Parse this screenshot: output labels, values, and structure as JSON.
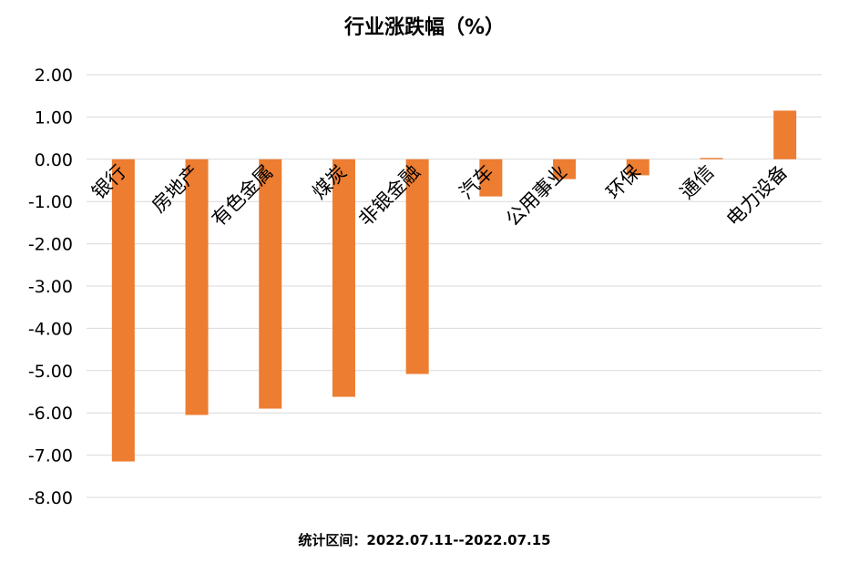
{
  "chart_data": {
    "type": "bar",
    "title": "行业涨跌幅（%）",
    "footnote": "统计区间：2022.07.11--2022.07.15",
    "xlabel": "",
    "ylabel": "",
    "ylim": [
      -8,
      2
    ],
    "yticks": [
      "2.00",
      "1.00",
      "0.00",
      "-1.00",
      "-2.00",
      "-3.00",
      "-4.00",
      "-5.00",
      "-6.00",
      "-7.00",
      "-8.00"
    ],
    "categories": [
      "银行",
      "房地产",
      "有色金属",
      "煤炭",
      "非银金融",
      "汽车",
      "公用事业",
      "环保",
      "通信",
      "电力设备"
    ],
    "values": [
      -7.15,
      -6.05,
      -5.9,
      -5.62,
      -5.08,
      -0.88,
      -0.47,
      -0.38,
      0.03,
      1.15
    ],
    "bar_color": "#ED7D31",
    "grid": true
  }
}
